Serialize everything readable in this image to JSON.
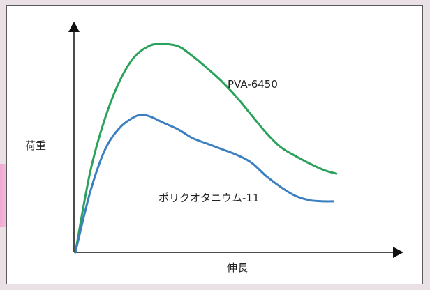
{
  "chart_data": {
    "type": "line",
    "xlabel": "伸長",
    "ylabel": "荷重",
    "xlim": [
      0,
      10
    ],
    "ylim": [
      0,
      10
    ],
    "axis_ticks": false,
    "grid": false,
    "series": [
      {
        "name": "PVA-6450",
        "color": "#2aa25a",
        "label_position": "upper-right of curve",
        "x": [
          0,
          0.5,
          1.0,
          1.5,
          2.0,
          2.5,
          2.9,
          3.5,
          4.0,
          4.5,
          5.0,
          5.5,
          6.0,
          6.5,
          7.0,
          7.5,
          8.0,
          8.5,
          8.9
        ],
        "y": [
          0,
          3.6,
          6.0,
          7.7,
          8.8,
          9.3,
          9.4,
          9.3,
          8.85,
          8.3,
          7.7,
          7.0,
          6.2,
          5.4,
          4.75,
          4.35,
          4.0,
          3.7,
          3.55
        ]
      },
      {
        "name": "ポリクオタニウム-11",
        "color": "#3b7fc0",
        "label_position": "below curve",
        "x": [
          0,
          0.5,
          1.0,
          1.5,
          2.0,
          2.3,
          2.6,
          3.0,
          3.5,
          4.0,
          4.5,
          5.0,
          5.5,
          6.0,
          6.5,
          7.0,
          7.5,
          8.0,
          8.5,
          8.8
        ],
        "y": [
          0,
          2.7,
          4.6,
          5.6,
          6.1,
          6.2,
          6.1,
          5.85,
          5.55,
          5.15,
          4.9,
          4.65,
          4.4,
          4.05,
          3.45,
          2.95,
          2.55,
          2.35,
          2.3,
          2.3
        ]
      }
    ]
  }
}
